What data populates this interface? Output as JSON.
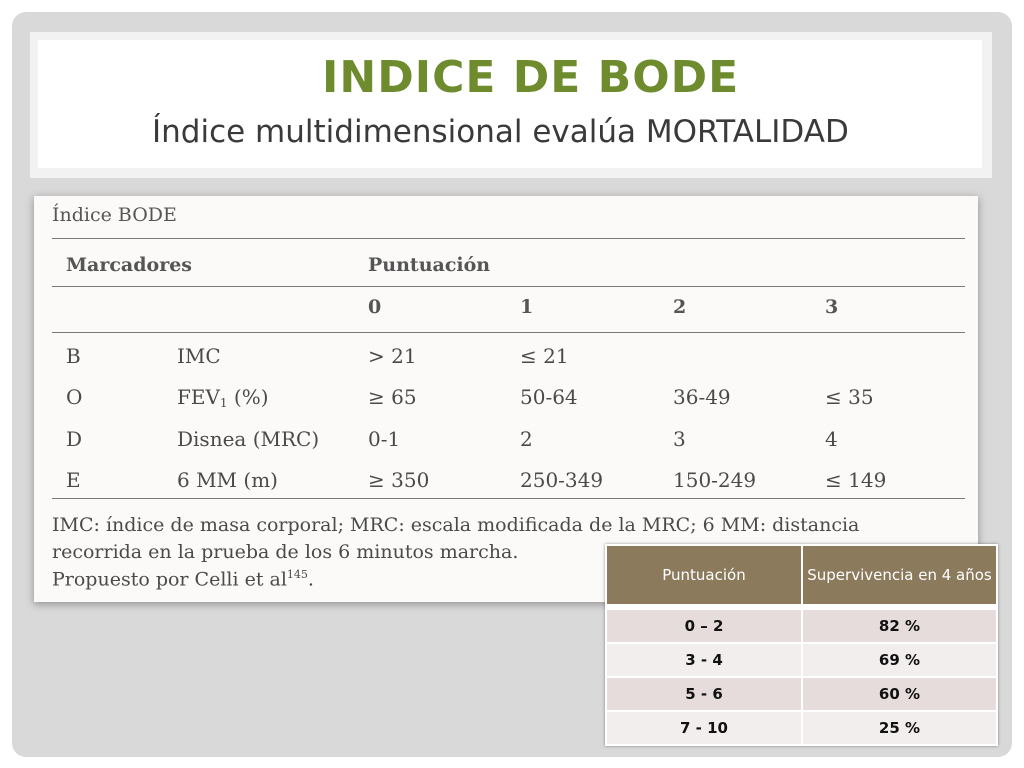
{
  "slide": {
    "title": "INDICE DE BODE",
    "subtitle": "Índice multidimensional evalúa MORTALIDAD"
  },
  "bode_table": {
    "caption": "Índice BODE",
    "col_marcadores": "Marcadores",
    "col_puntuacion": "Puntuación",
    "score_cols": [
      "0",
      "1",
      "2",
      "3"
    ],
    "rows": [
      {
        "letter": "B",
        "marker": "IMC",
        "sub": "",
        "marker_rest": "",
        "v0": "> 21",
        "v1": "≤ 21",
        "v2": "",
        "v3": ""
      },
      {
        "letter": "O",
        "marker": "FEV",
        "sub": "1",
        "marker_rest": " (%)",
        "v0": "≥ 65",
        "v1": "50-64",
        "v2": "36-49",
        "v3": "≤ 35"
      },
      {
        "letter": "D",
        "marker": "Disnea (MRC)",
        "sub": "",
        "marker_rest": "",
        "v0": "0-1",
        "v1": "2",
        "v2": "3",
        "v3": "4"
      },
      {
        "letter": "E",
        "marker": "6 MM (m)",
        "sub": "",
        "marker_rest": "",
        "v0": "≥ 350",
        "v1": "250-349",
        "v2": "150-249",
        "v3": "≤ 149"
      }
    ],
    "note_line1": "IMC: índice de masa corporal; MRC: escala modificada de la MRC; 6 MM: distancia",
    "note_line2": "recorrida en la prueba de los 6 minutos marcha.",
    "note_line3": "Propuesto por Celli et al",
    "note_ref": "145",
    "note_end": "."
  },
  "survival_table": {
    "headers": [
      "Puntuación",
      "Supervivencia en 4 años"
    ],
    "rows": [
      [
        "0 – 2",
        "82 %"
      ],
      [
        "3 - 4",
        "69 %"
      ],
      [
        "5 - 6",
        "60 %"
      ],
      [
        "7 - 10",
        "25 %"
      ]
    ]
  }
}
